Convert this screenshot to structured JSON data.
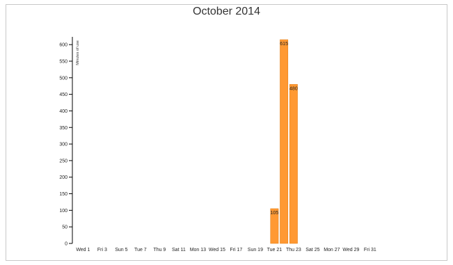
{
  "chart_data": {
    "type": "bar",
    "title": "October 2014",
    "ylabel": "Minutes of use",
    "xlabel": "",
    "ylim": [
      0,
      615
    ],
    "yticks": [
      0,
      50,
      100,
      150,
      200,
      250,
      300,
      350,
      400,
      450,
      500,
      550,
      600
    ],
    "days": 31,
    "xtick_labels": [
      {
        "day": 1,
        "label": "Wed 1"
      },
      {
        "day": 3,
        "label": "Fri 3"
      },
      {
        "day": 5,
        "label": "Sun 5"
      },
      {
        "day": 7,
        "label": "Tue 7"
      },
      {
        "day": 9,
        "label": "Thu 9"
      },
      {
        "day": 11,
        "label": "Sat 11"
      },
      {
        "day": 13,
        "label": "Mon 13"
      },
      {
        "day": 15,
        "label": "Wed 15"
      },
      {
        "day": 17,
        "label": "Fri 17"
      },
      {
        "day": 19,
        "label": "Sun 19"
      },
      {
        "day": 21,
        "label": "Tue 21"
      },
      {
        "day": 23,
        "label": "Thu 23"
      },
      {
        "day": 25,
        "label": "Sat 25"
      },
      {
        "day": 27,
        "label": "Mon 27"
      },
      {
        "day": 29,
        "label": "Wed 29"
      },
      {
        "day": 31,
        "label": "Fri 31"
      }
    ],
    "bars": [
      {
        "day": 21,
        "value": 105,
        "label": "105"
      },
      {
        "day": 22,
        "value": 615,
        "label": "615"
      },
      {
        "day": 23,
        "value": 480,
        "label": "480"
      }
    ],
    "bar_color": "#ff9933",
    "bar_stroke": "#e07a10",
    "grid": false,
    "legend": "none"
  }
}
